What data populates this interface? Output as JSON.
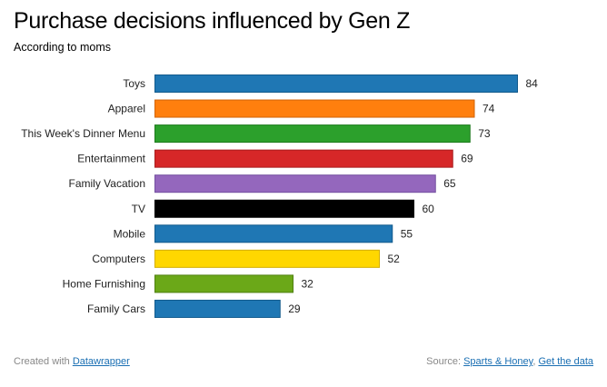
{
  "header": {
    "title": "Purchase decisions influenced by Gen Z",
    "subtitle": "According to moms"
  },
  "footer": {
    "created_prefix": "Created with ",
    "created_link": "Datawrapper",
    "source_prefix": "Source: ",
    "source_link": "Sparts & Honey",
    "separator": ", ",
    "data_link": "Get the data"
  },
  "colors": {
    "link": "#1a6fb3"
  },
  "chart_data": {
    "type": "bar",
    "orientation": "horizontal",
    "title": "Purchase decisions influenced by Gen Z",
    "subtitle": "According to moms",
    "xlabel": "",
    "ylabel": "",
    "xlim": [
      0,
      84
    ],
    "grid": false,
    "categories": [
      "Toys",
      "Apparel",
      "This Week's Dinner Menu",
      "Entertainment",
      "Family Vacation",
      "TV",
      "Mobile",
      "Computers",
      "Home Furnishing",
      "Family Cars"
    ],
    "values": [
      84,
      74,
      73,
      69,
      65,
      60,
      55,
      52,
      32,
      29
    ],
    "bar_colors": [
      "#1f77b4",
      "#ff7f0e",
      "#2ca02c",
      "#d62728",
      "#9467bd",
      "#000000",
      "#1f77b4",
      "#ffd700",
      "#6ba818",
      "#1f77b4"
    ],
    "bar_strokes": [
      "#125a8c",
      "#d2650a",
      "#1d7a1d",
      "#a81d1e",
      "#7350a0",
      "#000000",
      "#125a8c",
      "#d4ae00",
      "#4f7f10",
      "#125a8c"
    ]
  }
}
